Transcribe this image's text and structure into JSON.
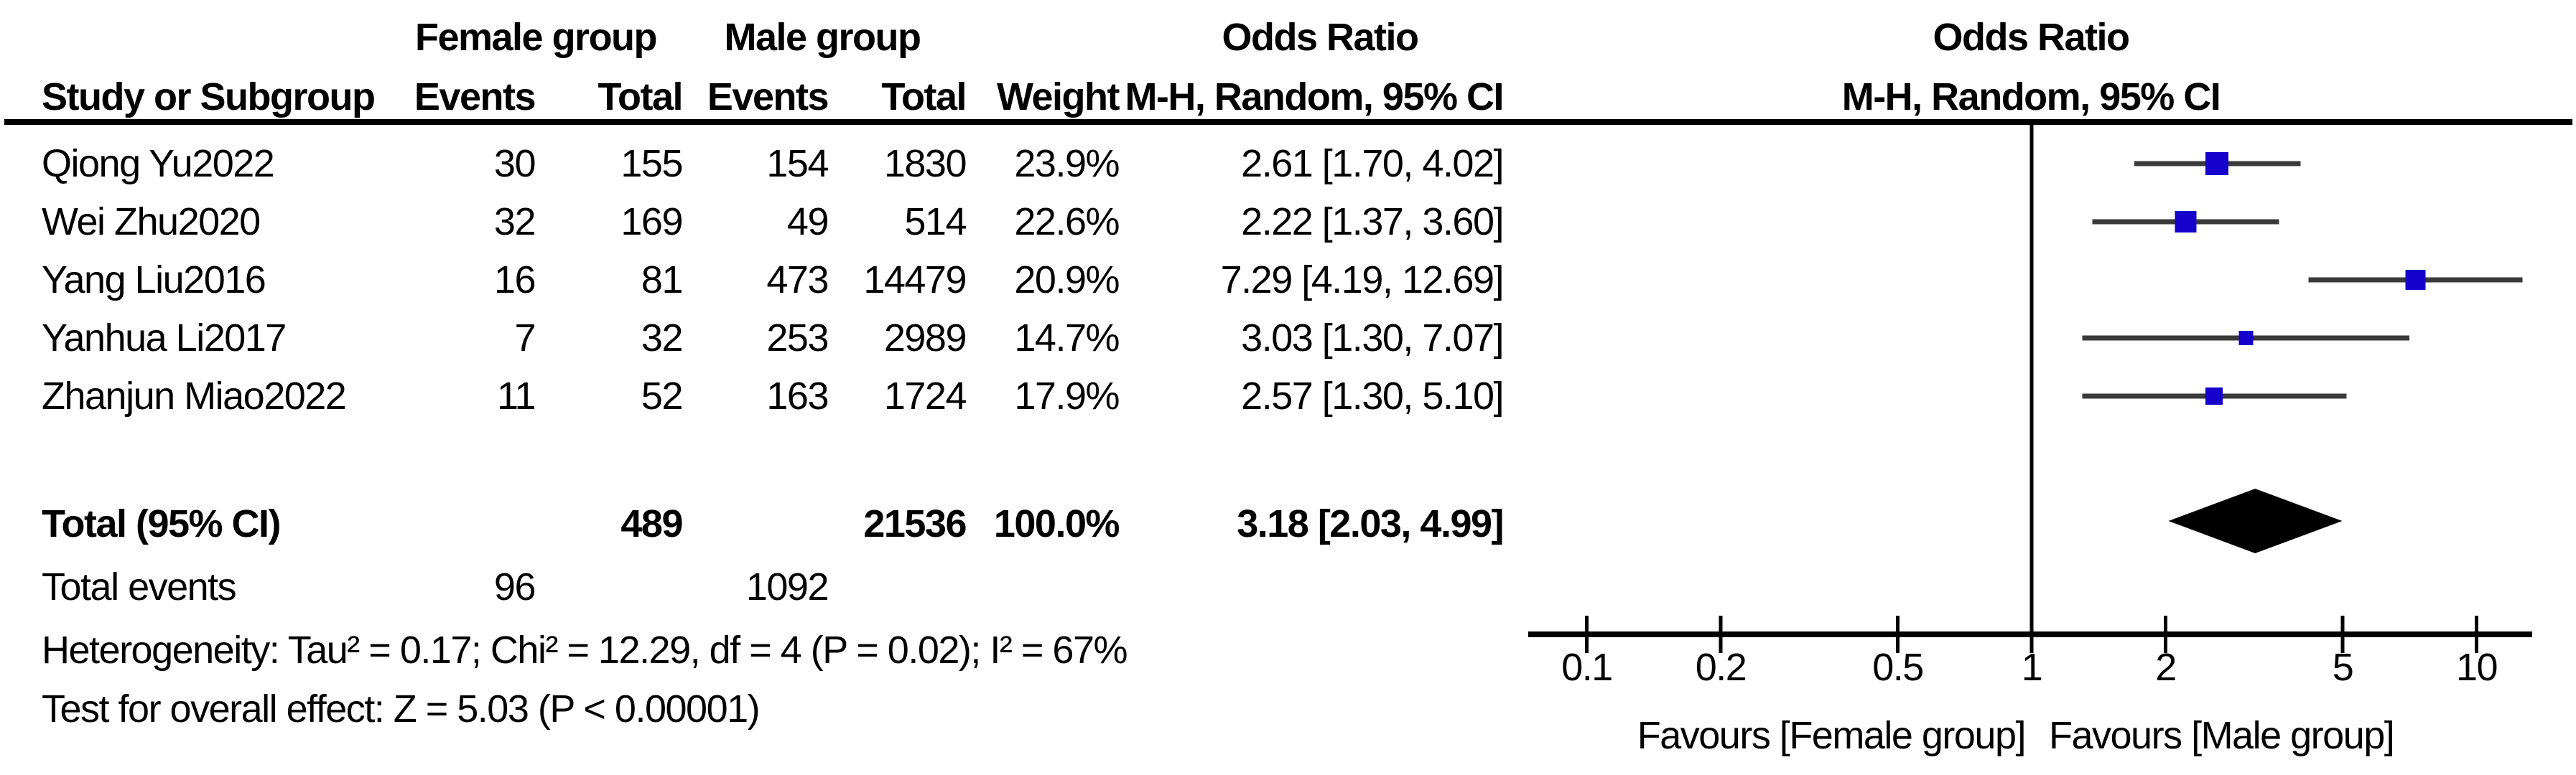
{
  "table": {
    "headers": {
      "study": "Study or Subgroup",
      "group1": "Female group",
      "group2": "Male group",
      "events": "Events",
      "total": "Total",
      "weight": "Weight",
      "or_title": "Odds Ratio",
      "or_sub": "M-H, Random, 95% CI"
    }
  },
  "chart_data": {
    "type": "forest",
    "title": "Odds Ratio",
    "subtitle": "M-H, Random, 95% CI",
    "x_axis": {
      "scale": "log10",
      "ticks": [
        0.1,
        0.2,
        0.5,
        1,
        2,
        5,
        10
      ],
      "tick_labels": [
        "0.1",
        "0.2",
        "0.5",
        "1",
        "2",
        "5",
        "10"
      ],
      "range": [
        0.1,
        10
      ],
      "null_line": 1
    },
    "studies": [
      {
        "name": "Qiong Yu2022",
        "events1": "30",
        "total1": "155",
        "events2": "154",
        "total2": "1830",
        "weight": "23.9%",
        "or_ci": "2.61 [1.70, 4.02]",
        "or": 2.61,
        "low": 1.7,
        "high": 4.02,
        "weight_num": 23.9
      },
      {
        "name": "Wei Zhu2020",
        "events1": "32",
        "total1": "169",
        "events2": "49",
        "total2": "514",
        "weight": "22.6%",
        "or_ci": "2.22 [1.37, 3.60]",
        "or": 2.22,
        "low": 1.37,
        "high": 3.6,
        "weight_num": 22.6
      },
      {
        "name": "Yang Liu2016",
        "events1": "16",
        "total1": "81",
        "events2": "473",
        "total2": "14479",
        "weight": "20.9%",
        "or_ci": "7.29 [4.19, 12.69]",
        "or": 7.29,
        "low": 4.19,
        "high": 12.69,
        "weight_num": 20.9
      },
      {
        "name": "Yanhua Li2017",
        "events1": "7",
        "total1": "32",
        "events2": "253",
        "total2": "2989",
        "weight": "14.7%",
        "or_ci": "3.03 [1.30, 7.07]",
        "or": 3.03,
        "low": 1.3,
        "high": 7.07,
        "weight_num": 14.7
      },
      {
        "name": "Zhanjun Miao2022",
        "events1": "11",
        "total1": "52",
        "events2": "163",
        "total2": "1724",
        "weight": "17.9%",
        "or_ci": "2.57 [1.30, 5.10]",
        "or": 2.57,
        "low": 1.3,
        "high": 5.1,
        "weight_num": 17.9
      }
    ],
    "total": {
      "label": "Total (95% CI)",
      "total1": "489",
      "total2": "21536",
      "weight": "100.0%",
      "or_ci": "3.18 [2.03, 4.99]",
      "or": 3.18,
      "low": 2.03,
      "high": 4.99
    },
    "total_events": {
      "label": "Total events",
      "events1": "96",
      "events2": "1092"
    },
    "heterogeneity": "Heterogeneity: Tau² = 0.17; Chi² = 12.29, df = 4 (P = 0.02); I² = 67%",
    "overall_effect": "Test for overall effect: Z = 5.03 (P < 0.00001)",
    "favours_left": "Favours [Female group]",
    "favours_right": "Favours [Male group]",
    "colors": {
      "square": "#1500cc",
      "ci_line": "#3a3a3a",
      "diamond": "#000000",
      "axis": "#000000"
    },
    "legend_position": "none",
    "grid": false
  }
}
